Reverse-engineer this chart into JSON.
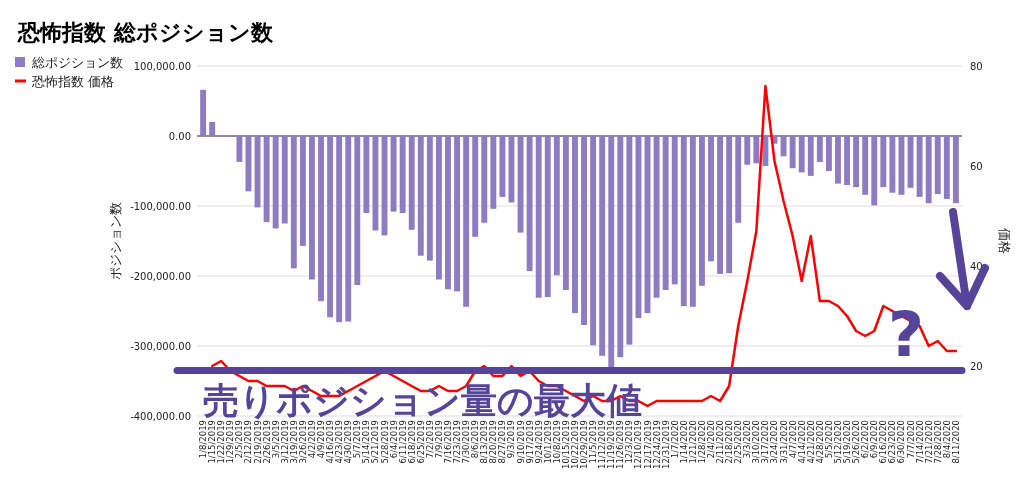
{
  "chart_data": {
    "type": "bar",
    "title": "恐怖指数 総ポジション数",
    "ylabel": "ポジション数",
    "y2label": "価格",
    "categories": [
      "1/8/2019",
      "1/15/2019",
      "1/22/2019",
      "1/29/2019",
      "2/5/2019",
      "2/12/2019",
      "2/19/2019",
      "2/26/2019",
      "3/5/2019",
      "3/12/2019",
      "3/19/2019",
      "3/26/2019",
      "4/2/2019",
      "4/9/2019",
      "4/16/2019",
      "4/23/2019",
      "4/30/2019",
      "5/7/2019",
      "5/14/2019",
      "5/21/2019",
      "5/28/2019",
      "6/4/2019",
      "6/11/2019",
      "6/18/2019",
      "6/25/2019",
      "7/2/2019",
      "7/9/2019",
      "7/16/2019",
      "7/23/2019",
      "7/30/2019",
      "8/6/2019",
      "8/13/2019",
      "8/20/2019",
      "8/27/2019",
      "9/3/2019",
      "9/10/2019",
      "9/17/2019",
      "9/24/2019",
      "10/1/2019",
      "10/8/2019",
      "10/15/2019",
      "10/22/2019",
      "10/29/2019",
      "11/5/2019",
      "11/12/2019",
      "11/19/2019",
      "11/26/2019",
      "12/3/2019",
      "12/10/2019",
      "12/17/2019",
      "12/24/2019",
      "12/31/2019",
      "1/7/2020",
      "1/14/2020",
      "1/21/2020",
      "1/28/2020",
      "2/4/2020",
      "2/11/2020",
      "2/18/2020",
      "2/25/2020",
      "3/3/2020",
      "3/10/2020",
      "3/17/2020",
      "3/24/2020",
      "3/31/2020",
      "4/7/2020",
      "4/14/2020",
      "4/21/2020",
      "4/28/2020",
      "5/5/2020",
      "5/12/2020",
      "5/19/2020",
      "5/26/2020",
      "6/2/2020",
      "6/9/2020",
      "6/16/2020",
      "6/23/2020",
      "6/30/2020",
      "7/7/2020",
      "7/14/2020",
      "7/21/2020",
      "7/28/2020",
      "8/4/2020",
      "8/11/2020"
    ],
    "series": [
      {
        "name": "総ポジション数",
        "color": "#8e7cc3",
        "values": [
          66000,
          20000,
          -1000,
          -1000,
          -37000,
          -79000,
          -102000,
          -123000,
          -132000,
          -125000,
          -189000,
          -157000,
          -205000,
          -236000,
          -259000,
          -266000,
          -265000,
          -213000,
          -110000,
          -135000,
          -142000,
          -108000,
          -110000,
          -134000,
          -171000,
          -178000,
          -205000,
          -219000,
          -222000,
          -244000,
          -144000,
          -124000,
          -104000,
          -87000,
          -95000,
          -138000,
          -193000,
          -231000,
          -230000,
          -199000,
          -220000,
          -253000,
          -270000,
          -299000,
          -314000,
          -335000,
          -316000,
          -298000,
          -260000,
          -253000,
          -231000,
          -220000,
          -212000,
          -243000,
          -244000,
          -214000,
          -179000,
          -197000,
          -196000,
          -124000,
          -41000,
          -39000,
          -43000,
          -11000,
          -29000,
          -46000,
          -52000,
          -57000,
          -37000,
          -50000,
          -68000,
          -70000,
          -73000,
          -84000,
          -99000,
          -73000,
          -81000,
          -84000,
          -74000,
          -87000,
          -96000,
          -83000,
          -90000,
          -96000
        ]
      },
      {
        "name": "恐怖指数 価格",
        "type": "line",
        "axis": "y2",
        "color": "#ff0000",
        "values": [
          null,
          20,
          21,
          19,
          18,
          17,
          17,
          16,
          16,
          16,
          15,
          16,
          15,
          14,
          14,
          14,
          15,
          16,
          17,
          18,
          19,
          18,
          17,
          16,
          15,
          15,
          16,
          15,
          15,
          16,
          19,
          20,
          18,
          18,
          20,
          18,
          19,
          17,
          16,
          16,
          15,
          14,
          13,
          14,
          13,
          13,
          14,
          13,
          13,
          12,
          13,
          13,
          13,
          13,
          13,
          13,
          14,
          13,
          16,
          28,
          37,
          47,
          76,
          61,
          53,
          46,
          37,
          46,
          33,
          33,
          32,
          30,
          27,
          26,
          27,
          32,
          31,
          30,
          29,
          28,
          24,
          25,
          23,
          23
        ]
      }
    ],
    "ylim": [
      -400000,
      100000
    ],
    "yticks": [
      {
        "value": 100000,
        "label": "100,000.00"
      },
      {
        "value": 0,
        "label": "0.00"
      },
      {
        "value": -100000,
        "label": "-100,000.00"
      },
      {
        "value": -200000,
        "label": "-200,000.00"
      },
      {
        "value": -300000,
        "label": "-300,000.00"
      },
      {
        "value": -400000,
        "label": "-400,000.00"
      }
    ],
    "y2lim": [
      10,
      80
    ],
    "y2ticks": [
      20,
      40,
      60,
      80
    ],
    "grid": "y",
    "legend": "top left",
    "ref_lines": [
      {
        "axis": "y",
        "value": -335000,
        "label": "売りポジション量の最大値",
        "color": "#54449a"
      }
    ],
    "annotations": [
      "?"
    ]
  }
}
